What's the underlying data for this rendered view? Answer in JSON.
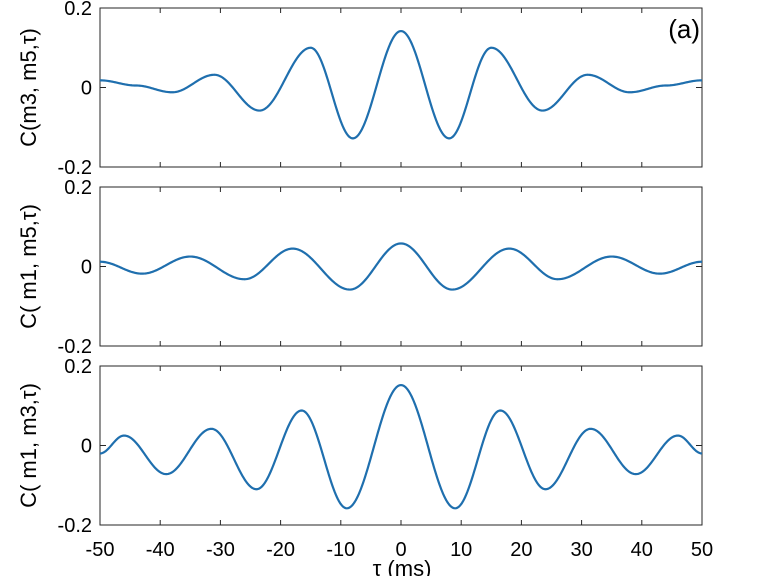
{
  "figure": {
    "xlabel": "τ (ms)",
    "series_color": "#1f6fae"
  },
  "chart_data": [
    {
      "type": "line",
      "panel_tag": "(a)",
      "ylabel": "C(m3, m5,τ)",
      "xlim": [
        -50,
        50
      ],
      "ylim": [
        -0.2,
        0.2
      ],
      "xticks": [],
      "yticks": [
        -0.2,
        0,
        0.2
      ],
      "ytick_labels": [
        "-0.2",
        "0",
        "0.2"
      ],
      "x": [
        -50,
        -44,
        -38,
        -31,
        -23.5,
        -15,
        -8,
        0,
        8,
        15,
        23.5,
        31,
        38,
        44,
        50
      ],
      "y": [
        0.018,
        0.005,
        -0.012,
        0.032,
        -0.058,
        0.1,
        -0.128,
        0.142,
        -0.128,
        0.1,
        -0.058,
        0.032,
        -0.012,
        0.005,
        0.018
      ]
    },
    {
      "type": "line",
      "panel_tag": "",
      "ylabel": "C( m1, m5,τ)",
      "xlim": [
        -50,
        50
      ],
      "ylim": [
        -0.2,
        0.2
      ],
      "xticks": [],
      "yticks": [
        -0.2,
        0,
        0.2
      ],
      "ytick_labels": [
        "-0.2",
        "0",
        "0.2"
      ],
      "x": [
        -50,
        -43,
        -35,
        -26,
        -18,
        -8.5,
        0,
        8.5,
        18,
        26,
        35,
        43,
        50
      ],
      "y": [
        0.012,
        -0.018,
        0.025,
        -0.032,
        0.045,
        -0.058,
        0.058,
        -0.058,
        0.045,
        -0.032,
        0.025,
        -0.018,
        0.012
      ],
      "ytick_bottom_clipped": true
    },
    {
      "type": "line",
      "panel_tag": "",
      "ylabel": "C( m1, m3,τ)",
      "xlim": [
        -50,
        50
      ],
      "ylim": [
        -0.2,
        0.2
      ],
      "xticks": [
        -50,
        -40,
        -30,
        -20,
        -10,
        0,
        10,
        20,
        30,
        40,
        50
      ],
      "xtick_labels": [
        "-50",
        "-40",
        "-30",
        "-20",
        "-10",
        "0",
        "10",
        "20",
        "30",
        "40",
        "50"
      ],
      "yticks": [
        -0.2,
        0,
        0.2
      ],
      "ytick_labels": [
        "-0.2",
        "0",
        "0.2"
      ],
      "x": [
        -50,
        -46,
        -39,
        -31.5,
        -24,
        -16.5,
        -9,
        0,
        9,
        16.5,
        24,
        31.5,
        39,
        46,
        50
      ],
      "y": [
        -0.02,
        0.025,
        -0.072,
        0.042,
        -0.11,
        0.088,
        -0.158,
        0.152,
        -0.158,
        0.088,
        -0.11,
        0.042,
        -0.072,
        0.025,
        -0.02
      ]
    }
  ]
}
